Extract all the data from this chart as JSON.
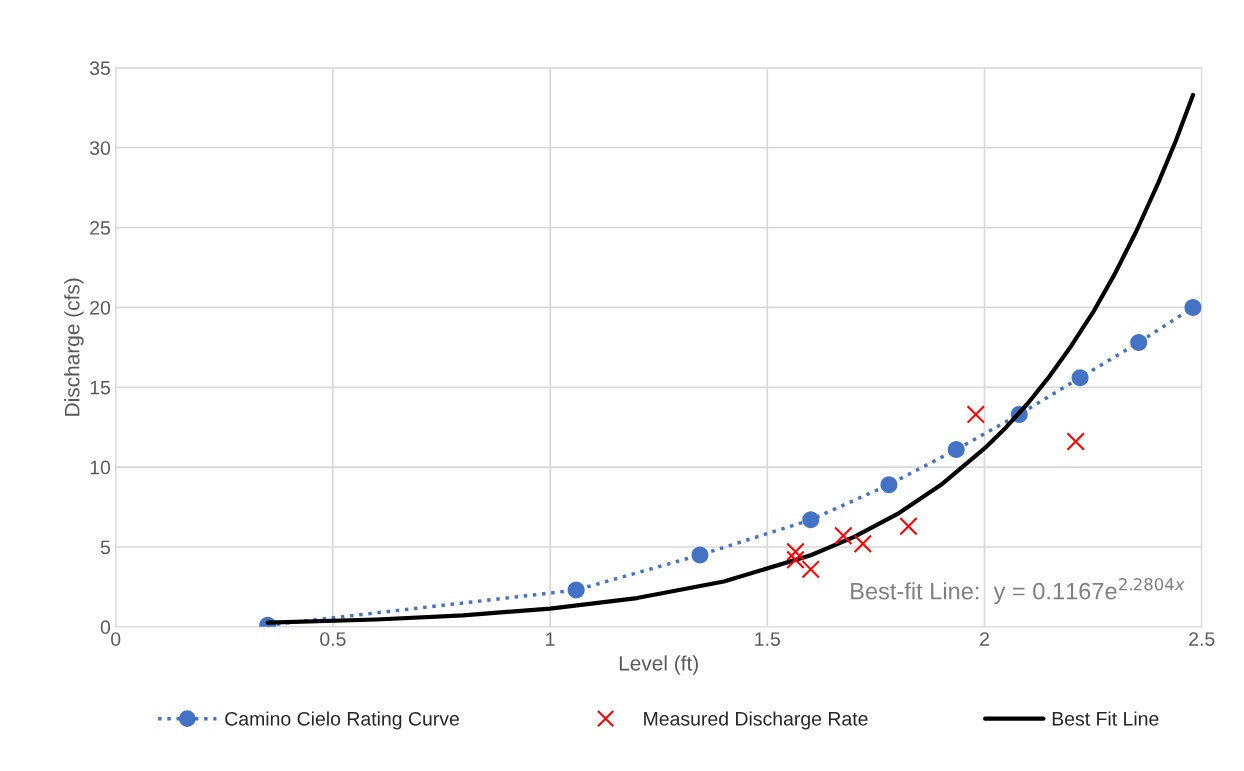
{
  "chart_data": {
    "type": "line",
    "xlabel": "Level (ft)",
    "ylabel": "Discharge (cfs)",
    "xlim": [
      0,
      2.5
    ],
    "xticks": [
      0,
      0.5,
      1,
      1.5,
      2,
      2.5
    ],
    "ylim": [
      0,
      35
    ],
    "yticks": [
      0,
      5,
      10,
      15,
      20,
      25,
      30,
      35
    ],
    "grid": true,
    "legend": "bottom",
    "annotations": [
      "Best-fit Line:  y = 0.1167e$^{2.2804x}$"
    ],
    "series": [
      {
        "name": "Camino Cielo Rating Curve",
        "color": "#4472c4",
        "marker": "circle",
        "line_style": "dotted",
        "x": [
          0.35,
          1.06,
          1.345,
          1.6,
          1.78,
          1.935,
          2.08,
          2.22,
          2.355,
          2.48
        ],
        "values": [
          0.1,
          2.3,
          4.5,
          6.7,
          8.9,
          11.1,
          13.3,
          15.6,
          17.8,
          20.0
        ]
      },
      {
        "name": "Measured Discharge Rate",
        "type": "scatter",
        "color": "#ff0000",
        "marker": "cross",
        "x": [
          1.565,
          1.565,
          1.6,
          1.675,
          1.72,
          1.825,
          1.98,
          2.21
        ],
        "values": [
          4.7,
          4.2,
          3.6,
          5.7,
          5.2,
          6.3,
          13.3,
          11.6
        ]
      },
      {
        "name": "Best Fit Line",
        "color": "#000000",
        "marker": "none",
        "line_style": "solid",
        "x": [
          0.35,
          0.6,
          0.8,
          1.0,
          1.2,
          1.4,
          1.6,
          1.7,
          1.8,
          1.9,
          2.0,
          2.05,
          2.1,
          2.15,
          2.2,
          2.25,
          2.3,
          2.35,
          2.4,
          2.44,
          2.48
        ],
        "values": [
          0.26,
          0.46,
          0.72,
          1.14,
          1.8,
          2.84,
          4.48,
          5.63,
          7.07,
          8.89,
          11.17,
          12.5,
          14.0,
          15.7,
          17.6,
          19.7,
          22.1,
          24.8,
          27.8,
          30.4,
          33.3
        ]
      }
    ]
  }
}
